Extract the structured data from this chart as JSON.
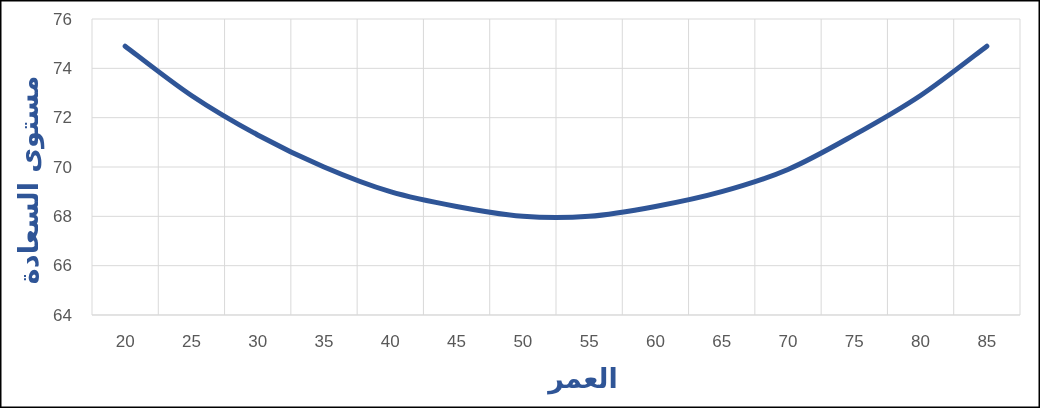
{
  "chart_data": {
    "type": "line",
    "xlabel": "العمر",
    "ylabel": "مستوى السعادة",
    "categories": [
      "20",
      "25",
      "30",
      "35",
      "40",
      "45",
      "50",
      "55",
      "60",
      "65",
      "70",
      "75",
      "80",
      "85"
    ],
    "values": [
      74.9,
      72.9,
      71.3,
      70.0,
      69.0,
      68.4,
      68.0,
      68.0,
      68.4,
      69.0,
      69.9,
      71.3,
      72.9,
      74.9
    ],
    "color": "#2f5597",
    "ylim": [
      64,
      76
    ],
    "yticks": [
      64,
      66,
      68,
      70,
      72,
      74,
      76
    ],
    "grid": true,
    "marker": "none",
    "line_style": "solid"
  }
}
